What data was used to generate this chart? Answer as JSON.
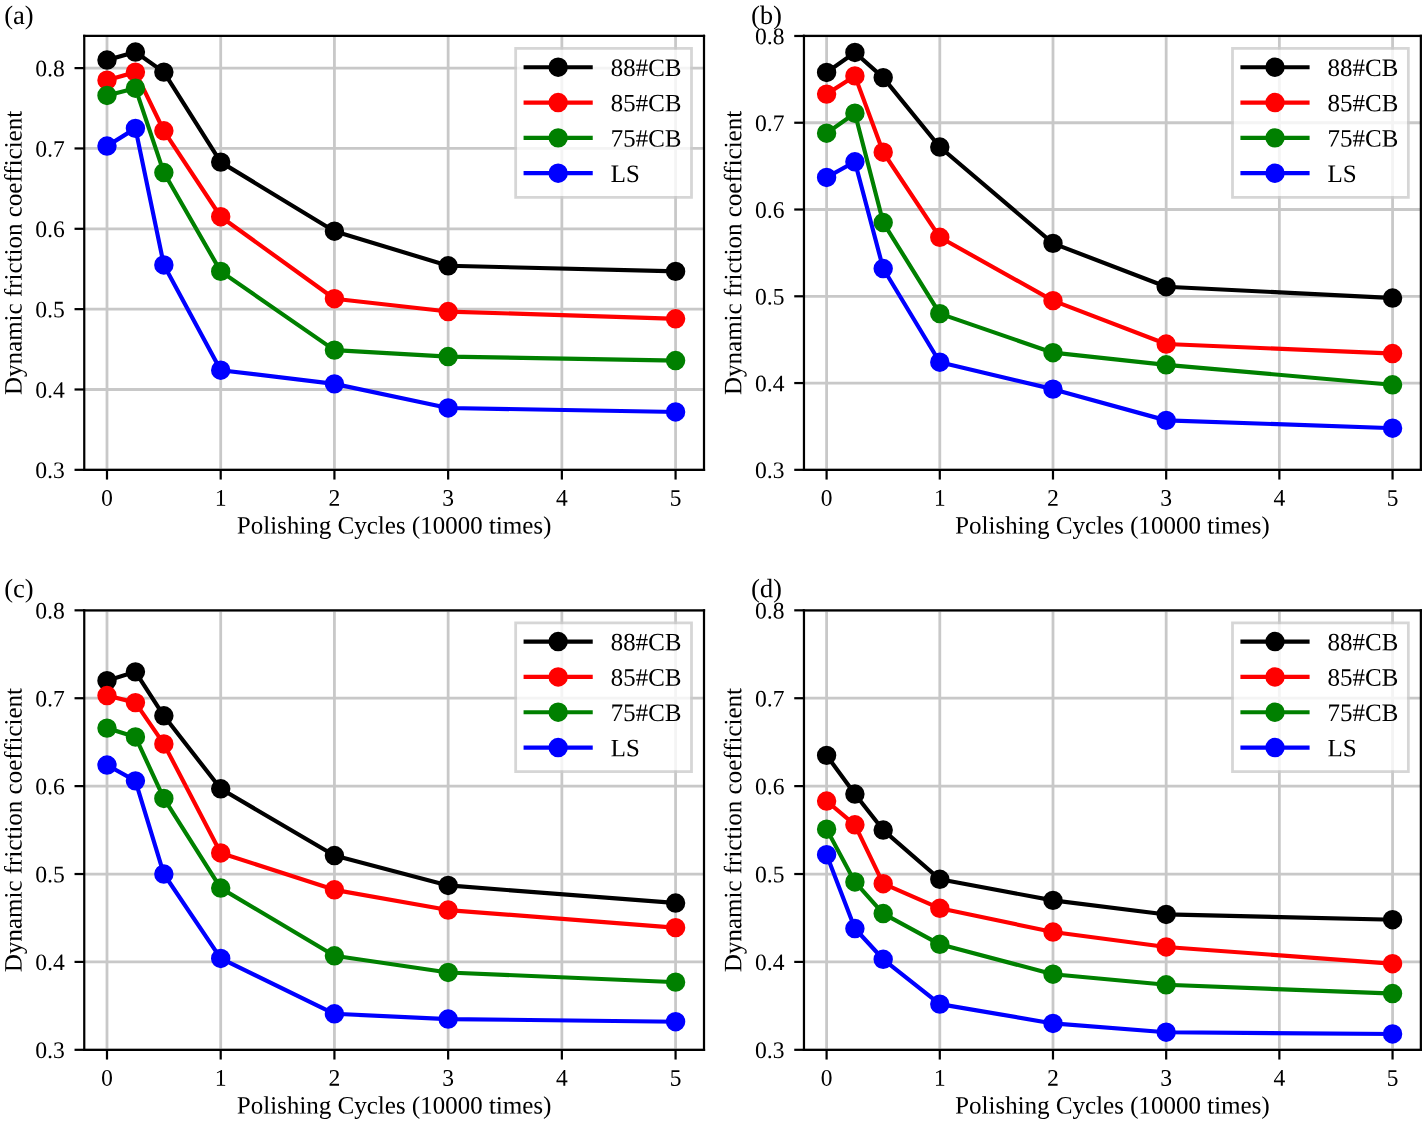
{
  "chart_data": [
    {
      "type": "line",
      "annotations": [
        "(a)"
      ],
      "xlabel": "Polishing Cycles (10000 times)",
      "ylabel": "Dynamic friction coefficient",
      "x": [
        0,
        0.25,
        0.5,
        1,
        2,
        3,
        5
      ],
      "xlim": [
        -0.2,
        5.25
      ],
      "ylim": [
        0.3,
        0.84
      ],
      "xticks": [
        0,
        1,
        2,
        3,
        4,
        5
      ],
      "yticks": [
        0.3,
        0.4,
        0.5,
        0.6,
        0.7,
        0.8
      ],
      "grid": true,
      "legend": "top right",
      "marker": "circle",
      "line_style": "solid",
      "series": [
        {
          "name": "88#CB",
          "color": "#000000",
          "values": [
            0.81,
            0.82,
            0.795,
            0.683,
            0.597,
            0.554,
            0.547
          ]
        },
        {
          "name": "85#CB",
          "color": "#ff0000",
          "values": [
            0.785,
            0.795,
            0.722,
            0.615,
            0.513,
            0.497,
            0.488
          ]
        },
        {
          "name": "75#CB",
          "color": "#008000",
          "values": [
            0.766,
            0.775,
            0.67,
            0.547,
            0.449,
            0.441,
            0.436
          ]
        },
        {
          "name": "LS",
          "color": "#0000ff",
          "values": [
            0.703,
            0.725,
            0.555,
            0.424,
            0.407,
            0.377,
            0.372
          ]
        }
      ]
    },
    {
      "type": "line",
      "annotations": [
        "(b)"
      ],
      "xlabel": "Polishing Cycles (10000 times)",
      "ylabel": "Dynamic friction coefficient",
      "x": [
        0,
        0.25,
        0.5,
        1,
        2,
        3,
        5
      ],
      "xlim": [
        -0.2,
        5.25
      ],
      "ylim": [
        0.3,
        0.8
      ],
      "xticks": [
        0,
        1,
        2,
        3,
        4,
        5
      ],
      "yticks": [
        0.3,
        0.4,
        0.5,
        0.6,
        0.7,
        0.8
      ],
      "grid": true,
      "legend": "top right",
      "marker": "circle",
      "line_style": "solid",
      "series": [
        {
          "name": "88#CB",
          "color": "#000000",
          "values": [
            0.758,
            0.781,
            0.752,
            0.672,
            0.561,
            0.511,
            0.498
          ]
        },
        {
          "name": "85#CB",
          "color": "#ff0000",
          "values": [
            0.733,
            0.754,
            0.666,
            0.568,
            0.495,
            0.445,
            0.434
          ]
        },
        {
          "name": "75#CB",
          "color": "#008000",
          "values": [
            0.688,
            0.711,
            0.585,
            0.48,
            0.435,
            0.421,
            0.398
          ]
        },
        {
          "name": "LS",
          "color": "#0000ff",
          "values": [
            0.637,
            0.655,
            0.532,
            0.424,
            0.393,
            0.357,
            0.348
          ]
        }
      ]
    },
    {
      "type": "line",
      "annotations": [
        "(c)"
      ],
      "xlabel": "Polishing Cycles (10000 times)",
      "ylabel": "Dynamic friction coefficient",
      "x": [
        0,
        0.25,
        0.5,
        1,
        2,
        3,
        5
      ],
      "xlim": [
        -0.2,
        5.25
      ],
      "ylim": [
        0.3,
        0.8
      ],
      "xticks": [
        0,
        1,
        2,
        3,
        4,
        5
      ],
      "yticks": [
        0.3,
        0.4,
        0.5,
        0.6,
        0.7,
        0.8
      ],
      "grid": true,
      "legend": "top right",
      "marker": "circle",
      "line_style": "solid",
      "series": [
        {
          "name": "88#CB",
          "color": "#000000",
          "values": [
            0.72,
            0.73,
            0.68,
            0.597,
            0.521,
            0.487,
            0.467
          ]
        },
        {
          "name": "85#CB",
          "color": "#ff0000",
          "values": [
            0.703,
            0.695,
            0.648,
            0.524,
            0.482,
            0.459,
            0.439
          ]
        },
        {
          "name": "75#CB",
          "color": "#008000",
          "values": [
            0.666,
            0.656,
            0.586,
            0.484,
            0.407,
            0.388,
            0.377
          ]
        },
        {
          "name": "LS",
          "color": "#0000ff",
          "values": [
            0.624,
            0.606,
            0.5,
            0.404,
            0.341,
            0.335,
            0.332
          ]
        }
      ]
    },
    {
      "type": "line",
      "annotations": [
        "(d)"
      ],
      "xlabel": "Polishing Cycles (10000 times)",
      "ylabel": "Dynamic friction coefficient",
      "x": [
        0,
        0.25,
        0.5,
        1,
        2,
        3,
        5
      ],
      "xlim": [
        -0.2,
        5.25
      ],
      "ylim": [
        0.3,
        0.8
      ],
      "xticks": [
        0,
        1,
        2,
        3,
        4,
        5
      ],
      "yticks": [
        0.3,
        0.4,
        0.5,
        0.6,
        0.7,
        0.8
      ],
      "grid": true,
      "legend": "top right",
      "marker": "circle",
      "line_style": "solid",
      "series": [
        {
          "name": "88#CB",
          "color": "#000000",
          "values": [
            0.635,
            0.591,
            0.55,
            0.494,
            0.47,
            0.454,
            0.448
          ]
        },
        {
          "name": "85#CB",
          "color": "#ff0000",
          "values": [
            0.583,
            0.556,
            0.489,
            0.461,
            0.434,
            0.417,
            0.398
          ]
        },
        {
          "name": "75#CB",
          "color": "#008000",
          "values": [
            0.551,
            0.491,
            0.455,
            0.42,
            0.386,
            0.374,
            0.364
          ]
        },
        {
          "name": "LS",
          "color": "#0000ff",
          "values": [
            0.522,
            0.438,
            0.403,
            0.352,
            0.33,
            0.32,
            0.318
          ]
        }
      ]
    }
  ]
}
